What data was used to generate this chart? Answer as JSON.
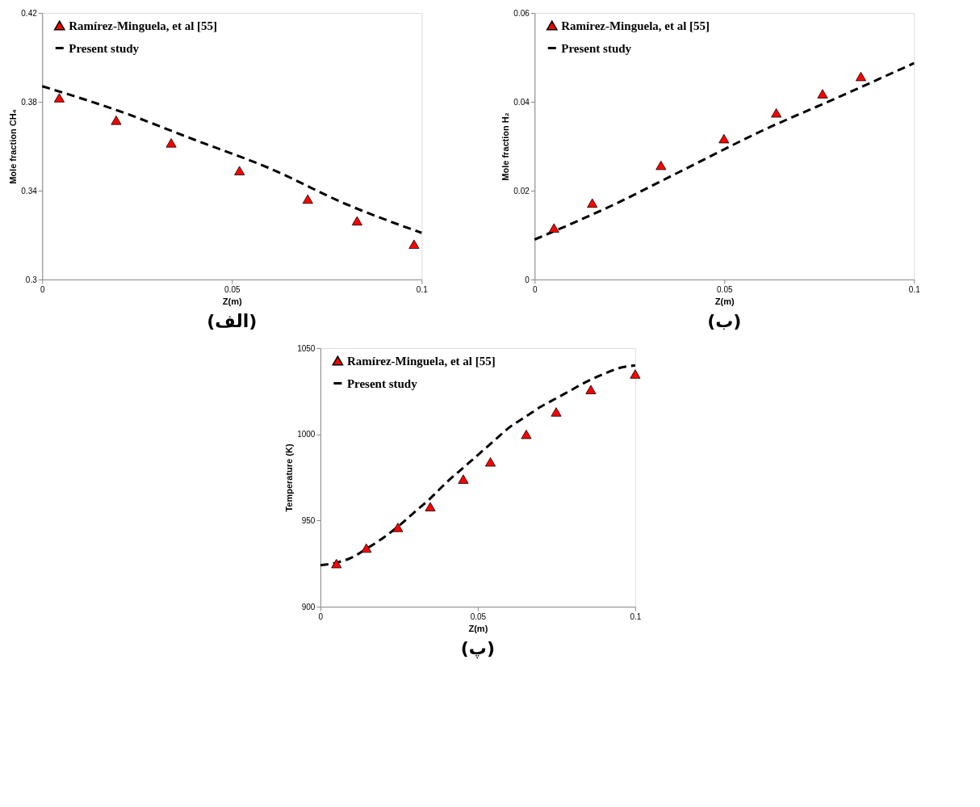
{
  "chart_data": [
    {
      "type": "line",
      "xlabel": "Z(m)",
      "ylabel": "Mole fraction CH₄",
      "xlim": [
        0,
        0.1
      ],
      "ylim": [
        0.3,
        0.42
      ],
      "xticks": [
        0,
        0.05,
        0.1
      ],
      "yticks": [
        0.3,
        0.34,
        0.38,
        0.42
      ],
      "grid": false,
      "legend": "top left",
      "annotations": [
        "(الف)"
      ],
      "series": [
        {
          "name": "Ramírez-Minguela, et al [55]",
          "type": "scatter",
          "marker": "triangle",
          "color": "#ff0000",
          "x": [
            0.0045,
            0.0195,
            0.034,
            0.052,
            0.07,
            0.083,
            0.098
          ],
          "values": [
            0.3818,
            0.3717,
            0.3615,
            0.349,
            0.3362,
            0.3264,
            0.3159
          ]
        },
        {
          "name": "Present study",
          "marker": "none",
          "line_style": "dashed",
          "color": "#000000",
          "x": [
            0,
            0.02,
            0.04,
            0.06,
            0.08,
            0.1
          ],
          "values": [
            0.387,
            0.376,
            0.363,
            0.35,
            0.334,
            0.321
          ]
        }
      ]
    },
    {
      "type": "line",
      "xlabel": "Z(m)",
      "ylabel": "Mole fraction H₂",
      "xlim": [
        0,
        0.1
      ],
      "ylim": [
        0,
        0.06
      ],
      "xticks": [
        0,
        0.05,
        0.1
      ],
      "yticks": [
        0,
        0.02,
        0.04,
        0.06
      ],
      "grid": false,
      "legend": "top left",
      "annotations": [
        "(ب)"
      ],
      "series": [
        {
          "name": "Ramírez-Minguela, et al [55]",
          "type": "scatter",
          "marker": "triangle",
          "color": "#ff0000",
          "x": [
            0.0051,
            0.0152,
            0.0333,
            0.0499,
            0.0637,
            0.0759,
            0.086
          ],
          "values": [
            0.0116,
            0.0172,
            0.0257,
            0.0317,
            0.0375,
            0.0418,
            0.0457
          ]
        },
        {
          "name": "Present study",
          "marker": "none",
          "line_style": "dashed",
          "color": "#000000",
          "x": [
            0,
            0.02,
            0.04,
            0.06,
            0.08,
            0.1
          ],
          "values": [
            0.009,
            0.0165,
            0.025,
            0.0335,
            0.041,
            0.0487
          ]
        }
      ]
    },
    {
      "type": "line",
      "xlabel": "Z(m)",
      "ylabel": "Temperature (K)",
      "xlim": [
        0,
        0.1
      ],
      "ylim": [
        900,
        1050
      ],
      "xticks": [
        0,
        0.05,
        0.1
      ],
      "yticks": [
        900,
        950,
        1000,
        1050
      ],
      "grid": false,
      "legend": "top left",
      "annotations": [
        "(پ)"
      ],
      "series": [
        {
          "name": "Ramírez-Minguela, et al [55]",
          "type": "scatter",
          "marker": "triangle",
          "color": "#ff0000",
          "x": [
            0.0051,
            0.0146,
            0.0246,
            0.0349,
            0.0454,
            0.054,
            0.0654,
            0.0749,
            0.0859,
            0.1
          ],
          "values": [
            925,
            934,
            946,
            958,
            974,
            984,
            1000,
            1013,
            1026,
            1035
          ]
        },
        {
          "name": "Present study",
          "marker": "none",
          "line_style": "dashed",
          "color": "#000000",
          "x": [
            0,
            0.005,
            0.01,
            0.015,
            0.02,
            0.025,
            0.03,
            0.035,
            0.04,
            0.045,
            0.05,
            0.055,
            0.06,
            0.065,
            0.07,
            0.075,
            0.08,
            0.085,
            0.09,
            0.095,
            0.1
          ],
          "values": [
            924,
            925.5,
            928.5,
            934,
            940,
            947,
            955,
            963,
            972,
            980,
            988,
            996,
            1004,
            1010,
            1016,
            1021,
            1026,
            1031,
            1035,
            1038.5,
            1040
          ]
        }
      ]
    }
  ]
}
